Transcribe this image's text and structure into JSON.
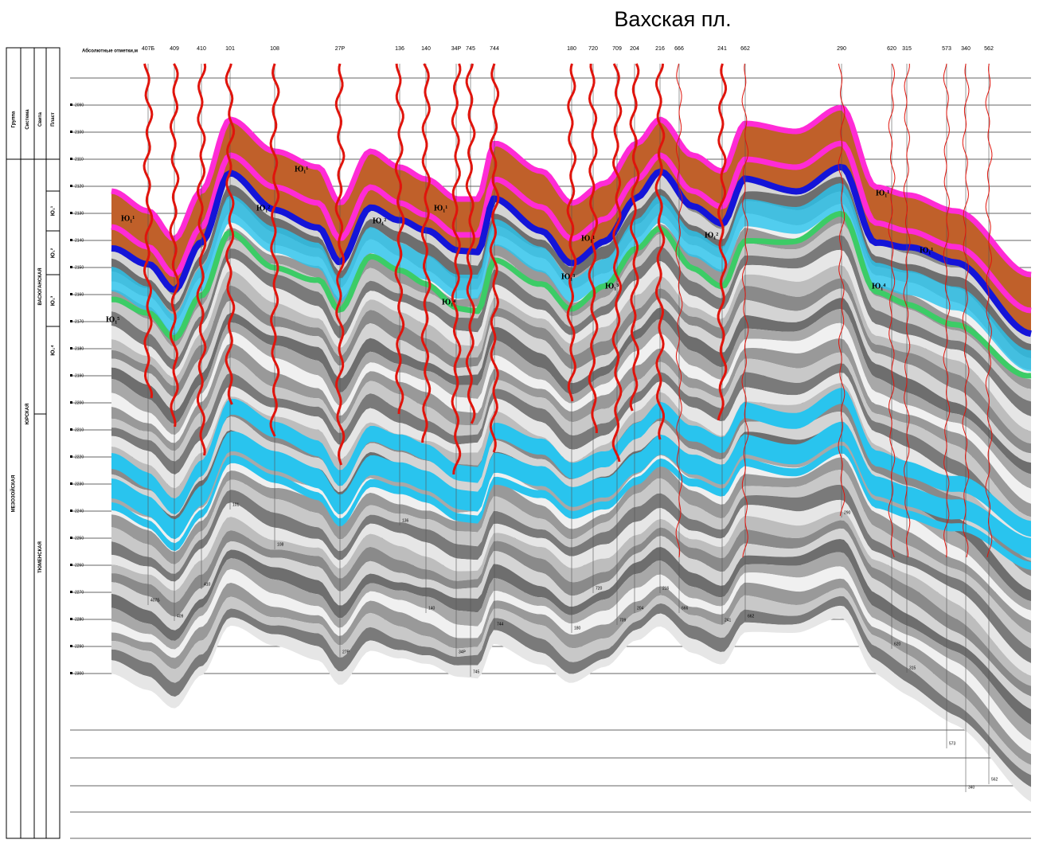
{
  "title": "Вахская пл.",
  "depth_axis": {
    "label": "Абсолютные отметки,м",
    "ticks": [
      "2090",
      "2100",
      "2110",
      "2120",
      "2130",
      "2140",
      "2150",
      "2160",
      "2170",
      "2180",
      "2190",
      "2200",
      "2210",
      "2220",
      "2230",
      "2240",
      "2250",
      "2260",
      "2270",
      "2280",
      "2290",
      "2300"
    ]
  },
  "stratigraphy": {
    "headers": [
      "Группа",
      "Система",
      "Свита",
      "Пласт"
    ],
    "group": "МЕЗОЗОЙСКАЯ",
    "system": "ЮРСКАЯ",
    "suites": [
      "ВАСЮГАНСКАЯ",
      "ТЮМЕНСКАЯ"
    ],
    "layers": [
      "Ю₁¹",
      "Ю₁²",
      "Ю₁³",
      "Ю₁⁴"
    ]
  },
  "wells": [
    "407Б",
    "409",
    "410",
    "101",
    "108",
    "27Р",
    "136",
    "140",
    "34Р",
    "745",
    "744",
    "180",
    "720",
    "709",
    "204",
    "216",
    "666",
    "241",
    "662",
    "290",
    "620",
    "315",
    "573",
    "340",
    "562"
  ],
  "horizon_labels": [
    "Ю₁¹",
    "Ю₁¹",
    "Ю₁²",
    "Ю₁²",
    "Ю₁¹",
    "Ю₁¹",
    "Ю₁³",
    "Ю₁³",
    "Ю₁⁴",
    "Ю₁²",
    "Ю₁¹",
    "Ю₁¹",
    "Ю₁⁴",
    "Ю₁⁵"
  ]
}
